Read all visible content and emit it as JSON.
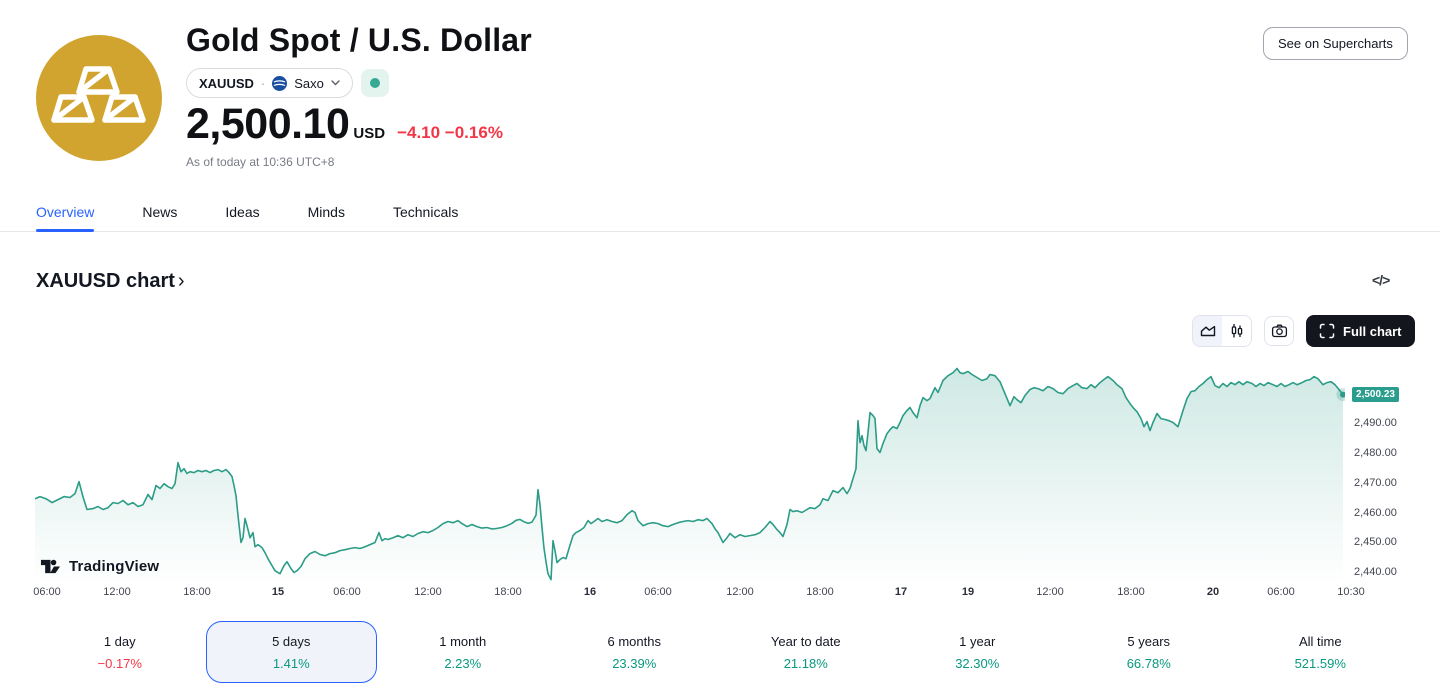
{
  "colors": {
    "accent_blue": "#2962ff",
    "down_red": "#f23645",
    "up_green": "#089981",
    "line_teal": "#2c9c87",
    "badge_teal": "#2a9d8f",
    "gold_logo": "#d1a42f"
  },
  "header": {
    "title": "Gold Spot / U.S. Dollar",
    "symbol": "XAUUSD",
    "sep": "·",
    "exchange": "Saxo",
    "market_status_icon": "market-open-dot",
    "price": "2,500.10",
    "currency": "USD",
    "change": "−4.10 −0.16%",
    "as_of": "As of today at 10:36 UTC+8",
    "supercharts": "See on Supercharts"
  },
  "tabs": [
    {
      "label": "Overview",
      "active": true
    },
    {
      "label": "News",
      "active": false
    },
    {
      "label": "Ideas",
      "active": false
    },
    {
      "label": "Minds",
      "active": false
    },
    {
      "label": "Technicals",
      "active": false
    }
  ],
  "section": {
    "title": "XAUUSD chart",
    "chevron": "›",
    "code_icon": "</>"
  },
  "toolbar": {
    "full_chart": "Full chart"
  },
  "watermark": {
    "text": "TradingView"
  },
  "chart_data": {
    "type": "area",
    "title": "XAUUSD 5 days price chart",
    "last_price": "2,500.23",
    "last_price_value": 2500.23,
    "ylim": [
      2436,
      2510
    ],
    "grid": false,
    "legend": "none",
    "y_ticks": [
      "2,490.00",
      "2,480.00",
      "2,470.00",
      "2,460.00",
      "2,450.00",
      "2,440.00"
    ],
    "x_ticks": [
      "06:00",
      "12:00",
      "18:00",
      "15",
      "06:00",
      "12:00",
      "18:00",
      "16",
      "06:00",
      "12:00",
      "18:00",
      "17",
      "19",
      "12:00",
      "18:00",
      "20",
      "06:00",
      "10:30"
    ],
    "mapping": {
      "ref_price": 2500.23,
      "ref_y": 36.5,
      "ppu": 3,
      "x0": 35,
      "bottom": 226
    },
    "points": [
      [
        35,
        2465.5
      ],
      [
        40,
        2466.2
      ],
      [
        46,
        2465.5
      ],
      [
        52,
        2464.2
      ],
      [
        58,
        2465.2
      ],
      [
        64,
        2466.2
      ],
      [
        70,
        2465.9
      ],
      [
        75,
        2467.2
      ],
      [
        79,
        2471.2
      ],
      [
        83,
        2466.1
      ],
      [
        87,
        2461.9
      ],
      [
        93,
        2462.2
      ],
      [
        98,
        2462.9
      ],
      [
        103,
        2461.9
      ],
      [
        108,
        2462.5
      ],
      [
        113,
        2464.2
      ],
      [
        118,
        2463.9
      ],
      [
        123,
        2464.9
      ],
      [
        128,
        2463.5
      ],
      [
        133,
        2464.2
      ],
      [
        138,
        2462.9
      ],
      [
        143,
        2463.5
      ],
      [
        148,
        2466.9
      ],
      [
        152,
        2465.2
      ],
      [
        156,
        2469.9
      ],
      [
        160,
        2468.9
      ],
      [
        164,
        2470.5
      ],
      [
        168,
        2469.5
      ],
      [
        172,
        2468.9
      ],
      [
        175,
        2470.5
      ],
      [
        178,
        2477.5
      ],
      [
        181,
        2474.5
      ],
      [
        184,
        2475.5
      ],
      [
        187,
        2473.9
      ],
      [
        190,
        2474.5
      ],
      [
        194,
        2474.2
      ],
      [
        198,
        2474.9
      ],
      [
        202,
        2474.5
      ],
      [
        206,
        2474.9
      ],
      [
        210,
        2474.2
      ],
      [
        214,
        2474.9
      ],
      [
        218,
        2475.2
      ],
      [
        222,
        2474.5
      ],
      [
        226,
        2475.2
      ],
      [
        229,
        2474.2
      ],
      [
        232,
        2472.9
      ],
      [
        234,
        2469.9
      ],
      [
        236,
        2466.5
      ],
      [
        238,
        2459.9
      ],
      [
        241,
        2450.9
      ],
      [
        243,
        2452.5
      ],
      [
        245,
        2458.9
      ],
      [
        247,
        2456.5
      ],
      [
        250,
        2452.5
      ],
      [
        253,
        2454.2
      ],
      [
        255,
        2449.5
      ],
      [
        258,
        2450.2
      ],
      [
        262,
        2449.2
      ],
      [
        265,
        2447.5
      ],
      [
        268,
        2445.5
      ],
      [
        272,
        2443.2
      ],
      [
        275,
        2441.5
      ],
      [
        280,
        2440.5
      ],
      [
        284,
        2443.2
      ],
      [
        287,
        2444.5
      ],
      [
        291,
        2442.2
      ],
      [
        294,
        2440.9
      ],
      [
        297,
        2441.5
      ],
      [
        301,
        2442.9
      ],
      [
        305,
        2445.5
      ],
      [
        310,
        2447.2
      ],
      [
        315,
        2447.9
      ],
      [
        320,
        2446.9
      ],
      [
        325,
        2446.5
      ],
      [
        330,
        2447.2
      ],
      [
        335,
        2447.5
      ],
      [
        340,
        2448.2
      ],
      [
        345,
        2448.5
      ],
      [
        350,
        2448.9
      ],
      [
        355,
        2449.2
      ],
      [
        360,
        2448.9
      ],
      [
        365,
        2449.5
      ],
      [
        370,
        2450.2
      ],
      [
        375,
        2450.9
      ],
      [
        379,
        2454.2
      ],
      [
        382,
        2451.5
      ],
      [
        385,
        2452.2
      ],
      [
        388,
        2451.9
      ],
      [
        393,
        2452.5
      ],
      [
        398,
        2453.2
      ],
      [
        403,
        2452.5
      ],
      [
        408,
        2453.5
      ],
      [
        413,
        2452.9
      ],
      [
        418,
        2453.9
      ],
      [
        423,
        2454.5
      ],
      [
        428,
        2454.2
      ],
      [
        433,
        2454.9
      ],
      [
        438,
        2455.9
      ],
      [
        443,
        2457.2
      ],
      [
        448,
        2457.9
      ],
      [
        453,
        2457.5
      ],
      [
        458,
        2458.2
      ],
      [
        462,
        2457.2
      ],
      [
        467,
        2456.2
      ],
      [
        472,
        2456.9
      ],
      [
        477,
        2456.2
      ],
      [
        482,
        2455.7
      ],
      [
        487,
        2455.9
      ],
      [
        492,
        2455.4
      ],
      [
        497,
        2455.6
      ],
      [
        502,
        2455.9
      ],
      [
        507,
        2456.5
      ],
      [
        512,
        2457.3
      ],
      [
        516,
        2458.3
      ],
      [
        520,
        2458.6
      ],
      [
        524,
        2457.8
      ],
      [
        528,
        2457.3
      ],
      [
        532,
        2457.7
      ],
      [
        536,
        2460.0
      ],
      [
        538,
        2468.5
      ],
      [
        540,
        2463.5
      ],
      [
        542,
        2455.9
      ],
      [
        544,
        2449.0
      ],
      [
        546,
        2444.5
      ],
      [
        548,
        2440.5
      ],
      [
        551,
        2438.5
      ],
      [
        553,
        2451.5
      ],
      [
        555,
        2448.2
      ],
      [
        557,
        2444.2
      ],
      [
        560,
        2445.2
      ],
      [
        563,
        2445.9
      ],
      [
        566,
        2445.5
      ],
      [
        569,
        2448.9
      ],
      [
        573,
        2453.2
      ],
      [
        576,
        2454.2
      ],
      [
        580,
        2454.9
      ],
      [
        584,
        2455.9
      ],
      [
        588,
        2458.2
      ],
      [
        591,
        2457.2
      ],
      [
        594,
        2457.9
      ],
      [
        598,
        2458.9
      ],
      [
        602,
        2457.9
      ],
      [
        607,
        2458.5
      ],
      [
        612,
        2457.9
      ],
      [
        617,
        2457.5
      ],
      [
        622,
        2458.2
      ],
      [
        627,
        2460.2
      ],
      [
        632,
        2461.5
      ],
      [
        635,
        2460.9
      ],
      [
        638,
        2458.2
      ],
      [
        643,
        2456.5
      ],
      [
        648,
        2457.2
      ],
      [
        653,
        2457.5
      ],
      [
        658,
        2457.2
      ],
      [
        663,
        2456.5
      ],
      [
        668,
        2456.2
      ],
      [
        673,
        2456.9
      ],
      [
        678,
        2457.5
      ],
      [
        683,
        2457.9
      ],
      [
        688,
        2458.2
      ],
      [
        693,
        2457.9
      ],
      [
        698,
        2458.5
      ],
      [
        703,
        2458.2
      ],
      [
        707,
        2458.9
      ],
      [
        712,
        2457.2
      ],
      [
        715,
        2455.5
      ],
      [
        718,
        2454.2
      ],
      [
        723,
        2450.9
      ],
      [
        727,
        2452.5
      ],
      [
        730,
        2453.9
      ],
      [
        735,
        2452.5
      ],
      [
        740,
        2453.5
      ],
      [
        745,
        2452.9
      ],
      [
        750,
        2453.2
      ],
      [
        755,
        2453.5
      ],
      [
        760,
        2454.2
      ],
      [
        765,
        2455.9
      ],
      [
        770,
        2457.9
      ],
      [
        773,
        2456.9
      ],
      [
        777,
        2455.2
      ],
      [
        780,
        2454.2
      ],
      [
        783,
        2452.9
      ],
      [
        787,
        2456.9
      ],
      [
        790,
        2461.9
      ],
      [
        793,
        2461.2
      ],
      [
        797,
        2461.5
      ],
      [
        802,
        2460.9
      ],
      [
        807,
        2461.9
      ],
      [
        810,
        2462.5
      ],
      [
        815,
        2462.2
      ],
      [
        820,
        2463.5
      ],
      [
        823,
        2465.5
      ],
      [
        828,
        2464.9
      ],
      [
        833,
        2468.2
      ],
      [
        838,
        2467.5
      ],
      [
        843,
        2469.2
      ],
      [
        847,
        2467.2
      ],
      [
        850,
        2468.9
      ],
      [
        853,
        2472.2
      ],
      [
        856,
        2475.5
      ],
      [
        858,
        2491.5
      ],
      [
        860,
        2484.2
      ],
      [
        862,
        2486.5
      ],
      [
        864,
        2483.2
      ],
      [
        866,
        2481.5
      ],
      [
        868,
        2487.5
      ],
      [
        870,
        2494.2
      ],
      [
        873,
        2493.2
      ],
      [
        875,
        2492.2
      ],
      [
        877,
        2482.2
      ],
      [
        880,
        2480.9
      ],
      [
        883,
        2483.9
      ],
      [
        887,
        2487.2
      ],
      [
        890,
        2488.5
      ],
      [
        893,
        2489.5
      ],
      [
        897,
        2488.9
      ],
      [
        900,
        2490.9
      ],
      [
        903,
        2493.2
      ],
      [
        907,
        2494.9
      ],
      [
        910,
        2495.9
      ],
      [
        913,
        2494.2
      ],
      [
        917,
        2492.5
      ],
      [
        920,
        2496.5
      ],
      [
        923,
        2499.2
      ],
      [
        927,
        2498.2
      ],
      [
        930,
        2498.9
      ],
      [
        935,
        2502.5
      ],
      [
        938,
        2500.9
      ],
      [
        943,
        2504.9
      ],
      [
        948,
        2506.5
      ],
      [
        953,
        2507.5
      ],
      [
        957,
        2508.9
      ],
      [
        960,
        2507.5
      ],
      [
        963,
        2507.2
      ],
      [
        968,
        2507.9
      ],
      [
        972,
        2506.9
      ],
      [
        977,
        2505.9
      ],
      [
        982,
        2504.9
      ],
      [
        987,
        2505.5
      ],
      [
        990,
        2506.9
      ],
      [
        995,
        2506.5
      ],
      [
        1000,
        2504.5
      ],
      [
        1005,
        2500.5
      ],
      [
        1010,
        2496.5
      ],
      [
        1014,
        2499.5
      ],
      [
        1017,
        2498.5
      ],
      [
        1021,
        2497.5
      ],
      [
        1025,
        2499.9
      ],
      [
        1030,
        2501.9
      ],
      [
        1034,
        2502.5
      ],
      [
        1038,
        2502.2
      ],
      [
        1043,
        2501.5
      ],
      [
        1048,
        2502.9
      ],
      [
        1053,
        2502.2
      ],
      [
        1058,
        2500.9
      ],
      [
        1063,
        2500.5
      ],
      [
        1068,
        2502.2
      ],
      [
        1073,
        2503.2
      ],
      [
        1077,
        2503.9
      ],
      [
        1082,
        2502.5
      ],
      [
        1087,
        2502.2
      ],
      [
        1091,
        2503.5
      ],
      [
        1095,
        2502.5
      ],
      [
        1100,
        2504.2
      ],
      [
        1105,
        2505.5
      ],
      [
        1108,
        2506.2
      ],
      [
        1113,
        2504.9
      ],
      [
        1117,
        2503.5
      ],
      [
        1122,
        2502.2
      ],
      [
        1126,
        2499.2
      ],
      [
        1130,
        2497.2
      ],
      [
        1134,
        2495.5
      ],
      [
        1137,
        2494.5
      ],
      [
        1141,
        2492.2
      ],
      [
        1144,
        2489.5
      ],
      [
        1147,
        2491.2
      ],
      [
        1150,
        2488.2
      ],
      [
        1153,
        2490.9
      ],
      [
        1157,
        2493.9
      ],
      [
        1161,
        2492.2
      ],
      [
        1165,
        2491.9
      ],
      [
        1169,
        2491.5
      ],
      [
        1173,
        2490.9
      ],
      [
        1178,
        2489.5
      ],
      [
        1183,
        2494.9
      ],
      [
        1187,
        2498.9
      ],
      [
        1191,
        2501.2
      ],
      [
        1195,
        2501.5
      ],
      [
        1199,
        2502.9
      ],
      [
        1203,
        2503.9
      ],
      [
        1207,
        2505.2
      ],
      [
        1211,
        2506.2
      ],
      [
        1215,
        2503.2
      ],
      [
        1219,
        2502.5
      ],
      [
        1223,
        2503.9
      ],
      [
        1227,
        2502.9
      ],
      [
        1231,
        2504.2
      ],
      [
        1235,
        2503.5
      ],
      [
        1239,
        2504.5
      ],
      [
        1243,
        2503.5
      ],
      [
        1247,
        2504.5
      ],
      [
        1252,
        2503.9
      ],
      [
        1256,
        2502.9
      ],
      [
        1260,
        2503.9
      ],
      [
        1264,
        2503.2
      ],
      [
        1268,
        2504.2
      ],
      [
        1273,
        2503.5
      ],
      [
        1277,
        2502.9
      ],
      [
        1281,
        2503.9
      ],
      [
        1285,
        2502.9
      ],
      [
        1289,
        2503.5
      ],
      [
        1293,
        2504.2
      ],
      [
        1297,
        2503.5
      ],
      [
        1302,
        2504.2
      ],
      [
        1306,
        2504.9
      ],
      [
        1310,
        2505.2
      ],
      [
        1314,
        2506.2
      ],
      [
        1318,
        2505.5
      ],
      [
        1323,
        2503.5
      ],
      [
        1327,
        2504.2
      ],
      [
        1331,
        2504.5
      ],
      [
        1335,
        2503.5
      ],
      [
        1339,
        2501.9
      ],
      [
        1343,
        2500.2
      ]
    ]
  },
  "ranges": [
    {
      "label": "1 day",
      "value": "−0.17%",
      "direction": "down",
      "selected": false
    },
    {
      "label": "5 days",
      "value": "1.41%",
      "direction": "up",
      "selected": true
    },
    {
      "label": "1 month",
      "value": "2.23%",
      "direction": "up",
      "selected": false
    },
    {
      "label": "6 months",
      "value": "23.39%",
      "direction": "up",
      "selected": false
    },
    {
      "label": "Year to date",
      "value": "21.18%",
      "direction": "up",
      "selected": false
    },
    {
      "label": "1 year",
      "value": "32.30%",
      "direction": "up",
      "selected": false
    },
    {
      "label": "5 years",
      "value": "66.78%",
      "direction": "up",
      "selected": false
    },
    {
      "label": "All time",
      "value": "521.59%",
      "direction": "up",
      "selected": false
    }
  ]
}
